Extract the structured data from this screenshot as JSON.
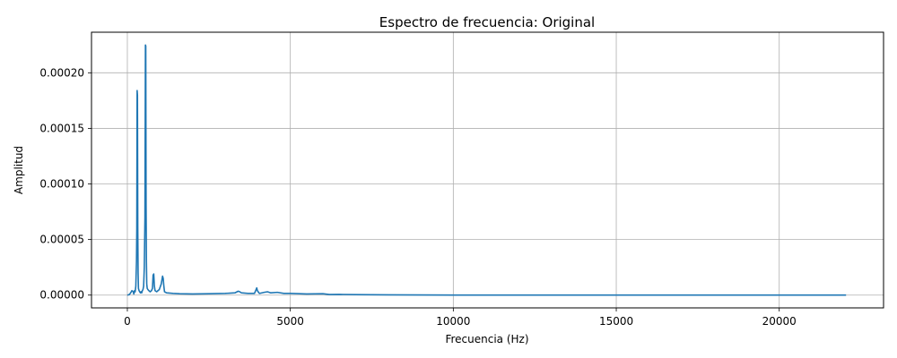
{
  "chart_data": {
    "type": "line",
    "title": "Espectro de frecuencia: Original",
    "xlabel": "Frecuencia (Hz)",
    "ylabel": "Amplitud",
    "xlim": [
      -1100,
      23200
    ],
    "ylim": [
      -1.15e-05,
      0.0002365
    ],
    "grid": true,
    "line_color": "#1f77b4",
    "x_ticks": [
      {
        "value": 0,
        "label": "0"
      },
      {
        "value": 5000,
        "label": "5000"
      },
      {
        "value": 10000,
        "label": "10000"
      },
      {
        "value": 15000,
        "label": "15000"
      },
      {
        "value": 20000,
        "label": "20000"
      }
    ],
    "y_ticks": [
      {
        "value": 0,
        "label": "0.00000"
      },
      {
        "value": 5e-05,
        "label": "0.00005"
      },
      {
        "value": 0.0001,
        "label": "0.00010"
      },
      {
        "value": 0.00015,
        "label": "0.00015"
      },
      {
        "value": 0.0002,
        "label": "0.00020"
      }
    ],
    "series": [
      {
        "x": [
          0,
          60,
          100,
          140,
          180,
          200,
          220,
          240,
          260,
          280,
          290,
          300,
          310,
          320,
          330,
          340,
          360,
          380,
          400,
          420,
          440,
          460,
          480,
          500,
          520,
          540,
          555,
          565,
          575,
          585,
          595,
          610,
          630,
          660,
          700,
          740,
          770,
          790,
          810,
          830,
          850,
          900,
          980,
          1040,
          1080,
          1100,
          1120,
          1140,
          1200,
          1400,
          1600,
          2000,
          2500,
          3000,
          3300,
          3400,
          3450,
          3500,
          3700,
          3900,
          3950,
          3970,
          3990,
          4050,
          4200,
          4300,
          4400,
          4600,
          4800,
          5000,
          5500,
          6000,
          6200,
          6500,
          7000,
          8000,
          9000,
          10000,
          12000,
          15000,
          18000,
          20000,
          22050
        ],
        "y": [
          0,
          5e-07,
          2e-06,
          4e-06,
          3e-06,
          1e-06,
          4e-06,
          3e-06,
          8e-06,
          3e-05,
          6e-05,
          0.000184,
          0.00018,
          6e-05,
          2e-05,
          6e-06,
          4e-06,
          3e-06,
          2e-06,
          3e-06,
          2e-06,
          4e-06,
          5e-06,
          8e-06,
          2.5e-05,
          7e-05,
          0.000225,
          0.000224,
          8e-05,
          3e-05,
          1e-05,
          6e-06,
          5e-06,
          4e-06,
          3e-06,
          4e-06,
          6e-06,
          1.8e-05,
          1.9e-05,
          8e-06,
          4e-06,
          3e-06,
          5e-06,
          1e-05,
          1.7e-05,
          1.5e-05,
          8e-06,
          3e-06,
          2e-06,
          1.5e-06,
          1.2e-06,
          1e-06,
          1.2e-06,
          1.5e-06,
          2e-06,
          3.5e-06,
          3e-06,
          2e-06,
          1.5e-06,
          1.5e-06,
          5e-06,
          6.5e-06,
          4e-06,
          1.5e-06,
          2.5e-06,
          3e-06,
          2e-06,
          2.5e-06,
          1.5e-06,
          1.5e-06,
          1e-06,
          1.2e-06,
          5e-07,
          6e-07,
          4e-07,
          2e-07,
          1e-07,
          5e-08,
          3e-08,
          2e-08,
          1e-08,
          1e-08,
          0
        ]
      }
    ]
  }
}
